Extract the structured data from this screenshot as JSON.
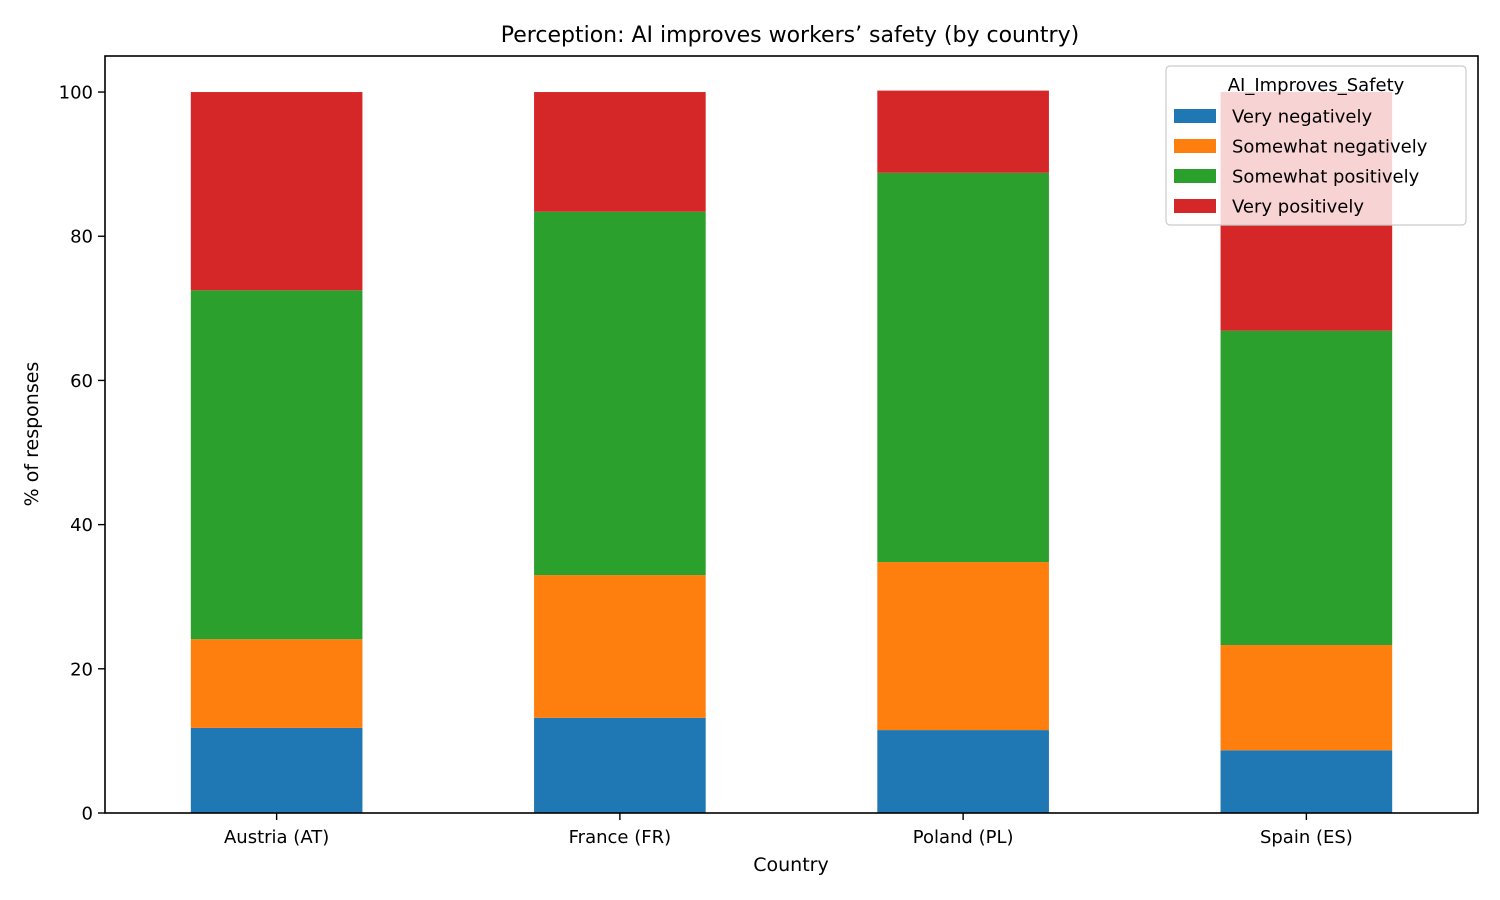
{
  "chart_data": {
    "type": "bar",
    "stacked": true,
    "title": "Perception: AI improves workers’ safety (by country)",
    "xlabel": "Country",
    "ylabel": "% of responses",
    "categories": [
      "Austria (AT)",
      "France (FR)",
      "Poland (PL)",
      "Spain (ES)"
    ],
    "ylim": [
      0,
      105
    ],
    "yticks": [
      0,
      20,
      40,
      60,
      80,
      100
    ],
    "grid": false,
    "legend": {
      "title": "AI_Improves_Safety",
      "placement": "top-right"
    },
    "series": [
      {
        "name": "Very negatively",
        "color": "#1f77b4",
        "values": [
          11.8,
          13.2,
          11.5,
          8.7
        ]
      },
      {
        "name": "Somewhat negatively",
        "color": "#ff7f0e",
        "values": [
          12.3,
          19.8,
          23.3,
          14.6
        ]
      },
      {
        "name": "Somewhat positively",
        "color": "#2ca02c",
        "values": [
          48.4,
          50.4,
          54.0,
          43.6
        ]
      },
      {
        "name": "Very positively",
        "color": "#d62728",
        "values": [
          27.5,
          16.6,
          11.4,
          33.1
        ]
      }
    ]
  }
}
